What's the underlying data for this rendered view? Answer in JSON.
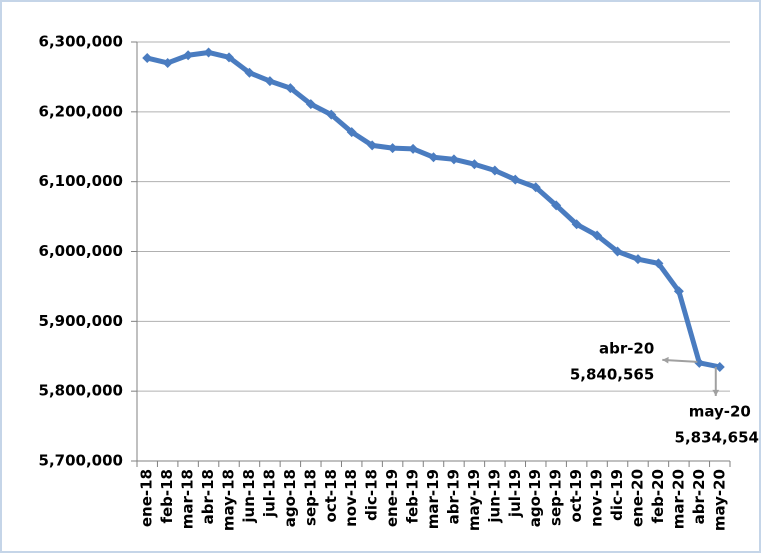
{
  "chart_data": {
    "type": "line",
    "categories": [
      "ene-18",
      "feb-18",
      "mar-18",
      "abr-18",
      "may-18",
      "jun-18",
      "jul-18",
      "ago-18",
      "sep-18",
      "oct-18",
      "nov-18",
      "dic-18",
      "ene-19",
      "feb-19",
      "mar-19",
      "abr-19",
      "may-19",
      "jun-19",
      "jul-19",
      "ago-19",
      "sep-19",
      "oct-19",
      "nov-19",
      "dic-19",
      "ene-20",
      "feb-20",
      "mar-20",
      "abr-20",
      "may-20"
    ],
    "series": [
      {
        "color": "#4a7cc0",
        "values": [
          6277000,
          6270000,
          6281000,
          6285000,
          6278000,
          6256000,
          6244000,
          6234000,
          6211000,
          6196000,
          6171000,
          6152000,
          6148000,
          6147000,
          6135000,
          6132000,
          6125000,
          6116000,
          6103000,
          6092000,
          6066000,
          6039000,
          6023000,
          6000000,
          5989000,
          5983000,
          5943000,
          5840565,
          5834654
        ]
      }
    ],
    "ylim": [
      5700000,
      6300000
    ],
    "yticks": [
      {
        "value": 5700000,
        "label": "5,700,000"
      },
      {
        "value": 5800000,
        "label": "5,800,000"
      },
      {
        "value": 5900000,
        "label": "5,900,000"
      },
      {
        "value": 6000000,
        "label": "6,000,000"
      },
      {
        "value": 6100000,
        "label": "6,100,000"
      },
      {
        "value": 6200000,
        "label": "6,200,000"
      },
      {
        "value": 6300000,
        "label": "6,300,000"
      }
    ],
    "grid": true,
    "annotations": [
      {
        "category": "abr-20",
        "label": "5,840,565"
      },
      {
        "category": "may-20",
        "label": "5,834,654"
      }
    ]
  }
}
